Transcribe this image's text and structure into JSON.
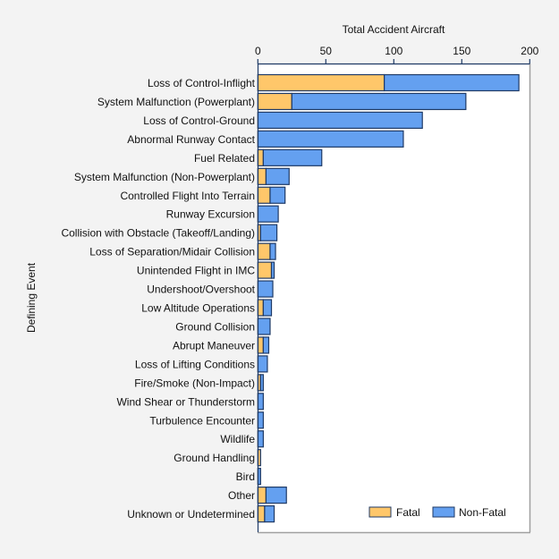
{
  "chart_data": {
    "type": "bar",
    "orientation": "horizontal",
    "stacked": true,
    "title": "",
    "xlabel": "Total Accident Aircraft",
    "xlabel_position": "top",
    "ylabel": "Defining Event",
    "xlim": [
      0,
      200
    ],
    "xticks": [
      0,
      50,
      100,
      150,
      200
    ],
    "grid": false,
    "legend_position": "bottom-right",
    "categories": [
      "Loss of Control-Inflight",
      "System Malfunction (Powerplant)",
      "Loss of Control-Ground",
      "Abnormal Runway Contact",
      "Fuel Related",
      "System Malfunction (Non-Powerplant)",
      "Controlled Flight Into Terrain",
      "Runway Excursion",
      "Collision with Obstacle (Takeoff/Landing)",
      "Loss of Separation/Midair Collision",
      "Unintended Flight in IMC",
      "Undershoot/Overshoot",
      "Low Altitude Operations",
      "Ground Collision",
      "Abrupt Maneuver",
      "Loss of Lifting Conditions",
      "Fire/Smoke (Non-Impact)",
      "Wind Shear or Thunderstorm",
      "Turbulence Encounter",
      "Wildlife",
      "Ground Handling",
      "Bird",
      "Other",
      "Unknown or Undetermined"
    ],
    "series": [
      {
        "name": "Fatal",
        "color": "#FFC76A",
        "values": [
          93,
          25,
          0,
          0,
          4,
          6,
          9,
          0,
          2,
          9,
          10,
          0,
          4,
          0,
          4,
          0,
          2,
          0,
          0,
          0,
          2,
          0,
          6,
          5
        ]
      },
      {
        "name": "Non-Fatal",
        "color": "#64A0F0",
        "values": [
          99,
          128,
          121,
          107,
          43,
          17,
          11,
          15,
          12,
          4,
          2,
          11,
          6,
          9,
          4,
          7,
          2,
          4,
          4,
          4,
          0,
          2,
          15,
          7
        ]
      }
    ]
  },
  "colors": {
    "background": "#F3F3F3",
    "plot_background": "#FFFFFF",
    "bar_border": "#1F3A66",
    "axis": "#1F3A66",
    "frame": "#A0A0A0"
  }
}
